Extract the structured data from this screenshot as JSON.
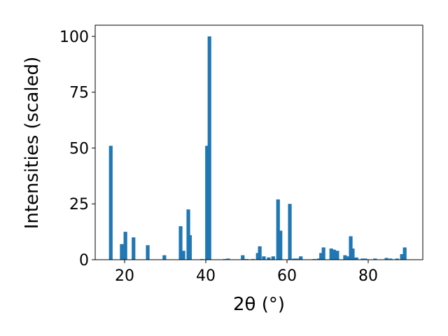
{
  "chart_data": {
    "type": "bar",
    "x_label": "2θ (°)",
    "y_label": "Intensities (scaled)",
    "color": "#1f77b4",
    "x": [
      16.6,
      19.3,
      20.2,
      22.2,
      25.7,
      29.8,
      33.8,
      34.5,
      35.7,
      36.1,
      39.1,
      40.3,
      40.9,
      44.7,
      45.5,
      49.1,
      50.0,
      51.6,
      52.8,
      53.3,
      54.3,
      55.5,
      56.6,
      57.8,
      58.4,
      60.7,
      61.7,
      62.6,
      63.4,
      66.7,
      67.8,
      68.4,
      69.0,
      70.9,
      71.6,
      72.4,
      74.3,
      75.2,
      75.7,
      76.2,
      77.1,
      78.6,
      79.3,
      81.7,
      84.5,
      85.5,
      87.1,
      88.3,
      89.0
    ],
    "values": [
      51,
      7,
      12.5,
      10,
      6.5,
      2,
      15,
      4,
      22.5,
      11,
      0.3,
      51,
      100,
      0.3,
      0.5,
      2,
      0.3,
      0.3,
      3,
      6,
      1.5,
      1,
      1.5,
      27,
      13,
      25,
      0.5,
      0.5,
      1.5,
      0.3,
      0.5,
      3,
      5.5,
      5,
      4.5,
      4,
      2,
      1.5,
      10.5,
      5,
      1,
      0.5,
      0.5,
      0.5,
      0.8,
      0.5,
      0.5,
      2.5,
      5.5
    ],
    "xlim": [
      12.76,
      93.45
    ],
    "ylim": [
      0,
      105
    ],
    "xticks": [
      20,
      40,
      60,
      80
    ],
    "yticks": [
      0,
      25,
      50,
      75,
      100
    ]
  }
}
